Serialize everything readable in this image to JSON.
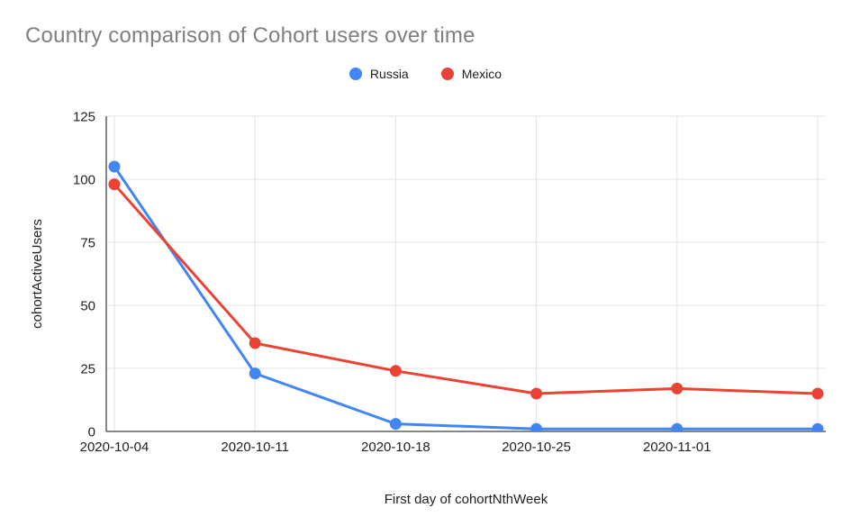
{
  "chart_data": {
    "type": "line",
    "title": "Country comparison of Cohort users over time",
    "xlabel": "First day of cohortNthWeek",
    "ylabel": "cohortActiveUsers",
    "categories": [
      "2020-10-04",
      "2020-10-11",
      "2020-10-18",
      "2020-10-25",
      "2020-11-01",
      ""
    ],
    "series": [
      {
        "name": "Russia",
        "color": "#4285F4",
        "values": [
          105,
          23,
          3,
          1,
          1,
          1
        ]
      },
      {
        "name": "Mexico",
        "color": "#EA4335",
        "values": [
          98,
          35,
          24,
          15,
          17,
          15
        ]
      }
    ],
    "ylim": [
      0,
      125
    ],
    "yticks": [
      0,
      25,
      50,
      75,
      100,
      125
    ],
    "grid": true,
    "legend_position": "top-center"
  },
  "colors": {
    "title_text": "#7F7F7F",
    "axis_text": "#212121",
    "gridline": "#E3E3E3",
    "axis_line": "#5F5F5F",
    "background": "#FFFFFF"
  }
}
